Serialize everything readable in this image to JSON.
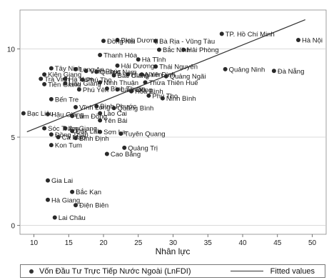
{
  "chart_data": {
    "type": "scatter",
    "title": "",
    "xlabel": "Nhân lực",
    "ylabel": "",
    "xlim": [
      8,
      52
    ],
    "ylim": [
      -0.5,
      12.2
    ],
    "xticks": [
      10,
      15,
      20,
      25,
      30,
      35,
      40,
      45,
      50
    ],
    "yticks": [
      0,
      5,
      10
    ],
    "grid": true,
    "legend_position": "bottom",
    "legend": {
      "series_label": "Vốn Đầu Tư Trực Tiếp Nước Ngoài (LnFDI)",
      "fit_label": "Fitted values"
    },
    "fit_line": {
      "x": [
        9,
        49
      ],
      "y": [
        5.3,
        11.65
      ]
    },
    "series": [
      {
        "name": "Vốn Đầu Tư Trực Tiếp Nước Ngoài (LnFDI)",
        "points": [
          {
            "label": "Hà Nội",
            "x": 48.0,
            "y": 10.5
          },
          {
            "label": "TP. Hồ Chí Minh",
            "x": 37.0,
            "y": 10.85
          },
          {
            "label": "Đà Nẵng",
            "x": 44.5,
            "y": 8.75
          },
          {
            "label": "Quảng Ninh",
            "x": 37.5,
            "y": 8.85
          },
          {
            "label": "Bình Dương",
            "x": 22.0,
            "y": 10.5
          },
          {
            "label": "Đồng Nai",
            "x": 20.0,
            "y": 10.45
          },
          {
            "label": "Bà Rịa - Vũng Tàu",
            "x": 27.5,
            "y": 10.45
          },
          {
            "label": "Bắc Ninh",
            "x": 28.0,
            "y": 9.95
          },
          {
            "label": "Hải Phòng",
            "x": 31.5,
            "y": 9.95
          },
          {
            "label": "Thanh Hóa",
            "x": 19.5,
            "y": 9.65
          },
          {
            "label": "Hà Tĩnh",
            "x": 25.0,
            "y": 9.4
          },
          {
            "label": "Hải Dương",
            "x": 22.0,
            "y": 9.05
          },
          {
            "label": "Thái Nguyên",
            "x": 27.5,
            "y": 9.0
          },
          {
            "label": "Long An",
            "x": 16.0,
            "y": 8.85
          },
          {
            "label": "Tây Ninh",
            "x": 12.5,
            "y": 8.9
          },
          {
            "label": "Vĩnh Phúc",
            "x": 17.5,
            "y": 8.75
          },
          {
            "label": "Quảng Nam",
            "x": 19.0,
            "y": 8.7
          },
          {
            "label": "Kiên Giang",
            "x": 11.5,
            "y": 8.55
          },
          {
            "label": "Bắc Giang",
            "x": 21.5,
            "y": 8.5
          },
          {
            "label": "Hưng Yên",
            "x": 23.5,
            "y": 8.55
          },
          {
            "label": "Nam Định",
            "x": 25.5,
            "y": 8.55
          },
          {
            "label": "Quảng Ngãi",
            "x": 29.0,
            "y": 8.45
          },
          {
            "label": "Trà Vinh",
            "x": 11.0,
            "y": 8.3
          },
          {
            "label": "Hà Nam",
            "x": 14.5,
            "y": 8.3
          },
          {
            "label": "Phú Thọ",
            "x": 17.0,
            "y": 8.25
          },
          {
            "label": "Tiền Giang",
            "x": 11.5,
            "y": 8.0
          },
          {
            "label": "Hậu Giang",
            "x": 14.5,
            "y": 8.05
          },
          {
            "label": "Ninh Thuận",
            "x": 19.5,
            "y": 8.1
          },
          {
            "label": "Thừa Thiên Huế",
            "x": 26.0,
            "y": 8.1
          },
          {
            "label": "Phú Yên",
            "x": 16.5,
            "y": 7.7
          },
          {
            "label": "Bình Thuận",
            "x": 20.5,
            "y": 7.75
          },
          {
            "label": "Lâm Đồng",
            "x": 22.0,
            "y": 7.7
          },
          {
            "label": "Hòa Bình",
            "x": 24.0,
            "y": 7.6
          },
          {
            "label": "Phú Thọ",
            "x": 26.5,
            "y": 7.35
          },
          {
            "label": "Ninh Bình",
            "x": 28.5,
            "y": 7.2
          },
          {
            "label": "Bến Tre",
            "x": 12.5,
            "y": 7.15
          },
          {
            "label": "Vĩnh Long",
            "x": 16.0,
            "y": 6.7
          },
          {
            "label": "Bình Phước",
            "x": 19.0,
            "y": 6.75
          },
          {
            "label": "Quảng Bình",
            "x": 21.5,
            "y": 6.65
          },
          {
            "label": "Bạc Liêu",
            "x": 8.5,
            "y": 6.35
          },
          {
            "label": "Hậu Giang",
            "x": 12.0,
            "y": 6.3
          },
          {
            "label": "Lào Cai",
            "x": 19.5,
            "y": 6.35
          },
          {
            "label": "Lâm Đồng",
            "x": 15.5,
            "y": 6.2
          },
          {
            "label": "Yên Bái",
            "x": 19.5,
            "y": 5.95
          },
          {
            "label": "Sóc Trăng",
            "x": 11.5,
            "y": 5.5
          },
          {
            "label": "An Giang",
            "x": 14.5,
            "y": 5.5
          },
          {
            "label": "Đắk Lắk",
            "x": 15.5,
            "y": 5.35
          },
          {
            "label": "Sơn La",
            "x": 19.5,
            "y": 5.3
          },
          {
            "label": "Tuyên Quang",
            "x": 22.5,
            "y": 5.2
          },
          {
            "label": "Đồng Tháp",
            "x": 12.5,
            "y": 5.15
          },
          {
            "label": "Cà Mau",
            "x": 13.5,
            "y": 5.0
          },
          {
            "label": "Bình Định",
            "x": 16.0,
            "y": 4.95
          },
          {
            "label": "Kon Tum",
            "x": 12.5,
            "y": 4.55
          },
          {
            "label": "Quảng Trị",
            "x": 23.0,
            "y": 4.4
          },
          {
            "label": "Cao Bằng",
            "x": 20.5,
            "y": 4.05
          },
          {
            "label": "Gia Lai",
            "x": 12.0,
            "y": 2.55
          },
          {
            "label": "Bắc Kạn",
            "x": 15.5,
            "y": 1.9
          },
          {
            "label": "Hà Giang",
            "x": 12.0,
            "y": 1.45
          },
          {
            "label": "Điện Biên",
            "x": 16.0,
            "y": 1.15
          },
          {
            "label": "Lai Châu",
            "x": 13.0,
            "y": 0.45
          }
        ]
      }
    ]
  }
}
